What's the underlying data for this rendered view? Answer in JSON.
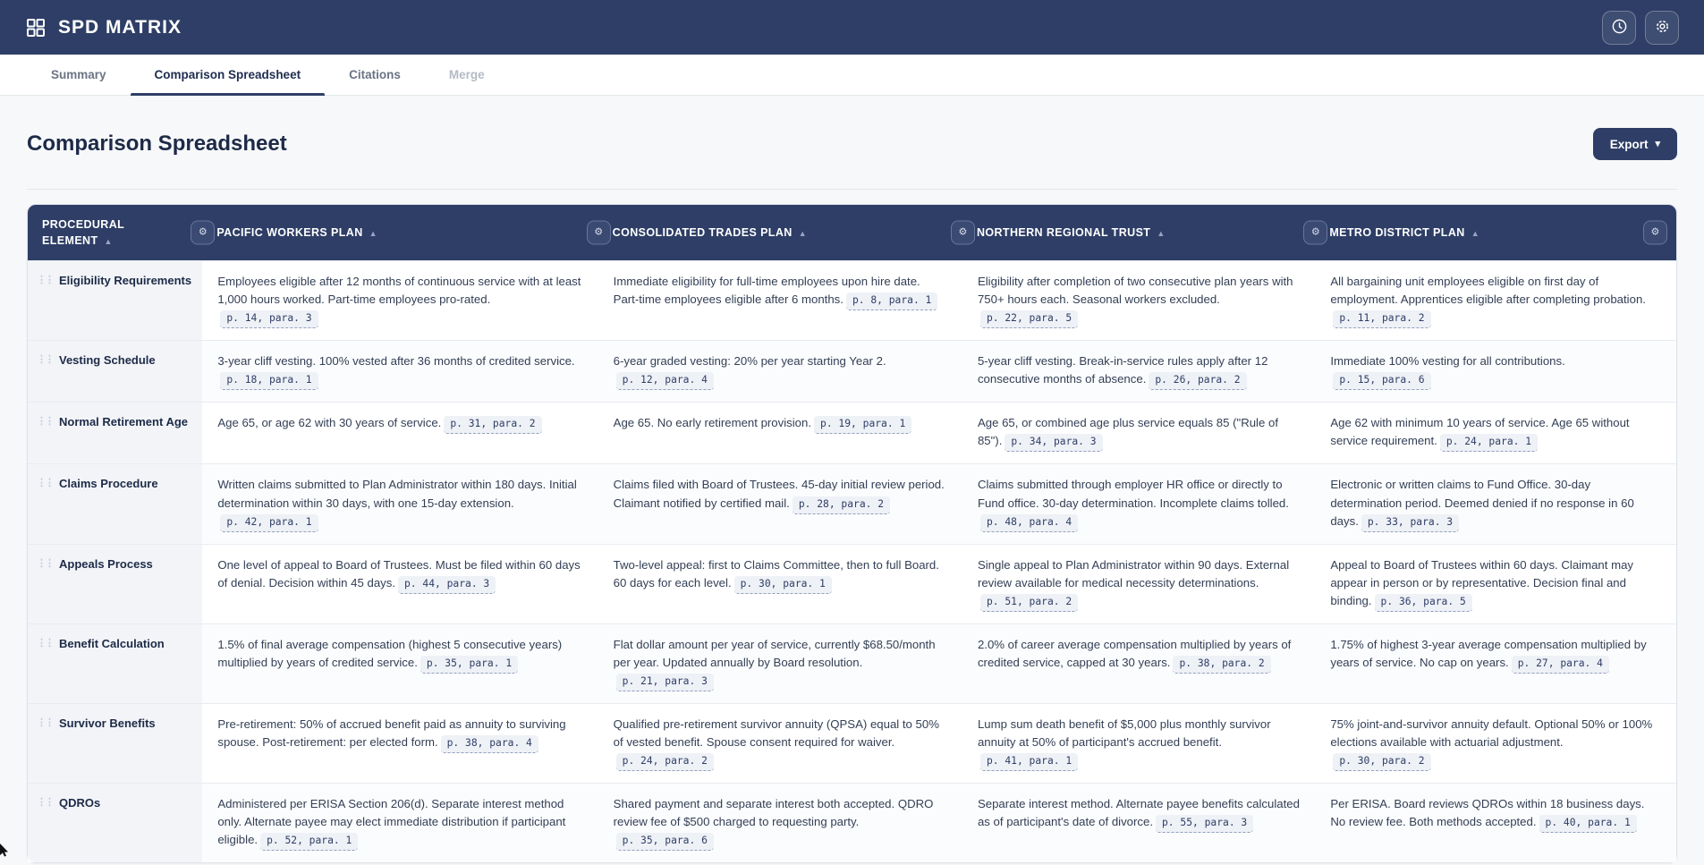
{
  "app": {
    "title": "SPD MATRIX"
  },
  "colors": {
    "brand_navy": "#2e3e66",
    "page_bg": "#f7f8fa",
    "chip_bg": "#eef1f6",
    "element_column_bg": "#f2f4f8"
  },
  "icons": {
    "logo": "grid-icon",
    "history": "clock-icon",
    "settings": "gear-icon",
    "sort_asc": "▲",
    "caret_down": "▾",
    "drag_handle": "⋮⋮",
    "column_settings": "⚙"
  },
  "tabs": [
    {
      "label": "Summary",
      "state": "inactive"
    },
    {
      "label": "Comparison Spreadsheet",
      "state": "active"
    },
    {
      "label": "Citations",
      "state": "inactive"
    },
    {
      "label": "Merge",
      "state": "disabled"
    }
  ],
  "page": {
    "title": "Comparison Spreadsheet",
    "export_label": "Export"
  },
  "table": {
    "columns": [
      {
        "label": "PROCEDURAL ELEMENT"
      },
      {
        "label": "PACIFIC WORKERS PLAN"
      },
      {
        "label": "CONSOLIDATED TRADES PLAN"
      },
      {
        "label": "NORTHERN REGIONAL TRUST"
      },
      {
        "label": "METRO DISTRICT PLAN"
      }
    ],
    "rows": [
      {
        "element": "Eligibility Requirements",
        "cells": [
          {
            "text": "Employees eligible after 12 months of continuous service with at least 1,000 hours worked. Part-time employees pro-rated.",
            "citation": "p. 14, para. 3"
          },
          {
            "text": "Immediate eligibility for full-time employees upon hire date. Part-time employees eligible after 6 months.",
            "citation": "p. 8, para. 1"
          },
          {
            "text": "Eligibility after completion of two consecutive plan years with 750+ hours each. Seasonal workers excluded.",
            "citation": "p. 22, para. 5"
          },
          {
            "text": "All bargaining unit employees eligible on first day of employment. Apprentices eligible after completing probation.",
            "citation": "p. 11, para. 2"
          }
        ]
      },
      {
        "element": "Vesting Schedule",
        "cells": [
          {
            "text": "3-year cliff vesting. 100% vested after 36 months of credited service.",
            "citation": "p. 18, para. 1"
          },
          {
            "text": "6-year graded vesting: 20% per year starting Year 2.",
            "citation": "p. 12, para. 4"
          },
          {
            "text": "5-year cliff vesting. Break-in-service rules apply after 12 consecutive months of absence.",
            "citation": "p. 26, para. 2"
          },
          {
            "text": "Immediate 100% vesting for all contributions.",
            "citation": "p. 15, para. 6"
          }
        ]
      },
      {
        "element": "Normal Retirement Age",
        "cells": [
          {
            "text": "Age 65, or age 62 with 30 years of service.",
            "citation": "p. 31, para. 2"
          },
          {
            "text": "Age 65. No early retirement provision.",
            "citation": "p. 19, para. 1"
          },
          {
            "text": "Age 65, or combined age plus service equals 85 (\"Rule of 85\").",
            "citation": "p. 34, para. 3"
          },
          {
            "text": "Age 62 with minimum 10 years of service. Age 65 without service requirement.",
            "citation": "p. 24, para. 1"
          }
        ]
      },
      {
        "element": "Claims Procedure",
        "cells": [
          {
            "text": "Written claims submitted to Plan Administrator within 180 days. Initial determination within 30 days, with one 15-day extension.",
            "citation": "p. 42, para. 1"
          },
          {
            "text": "Claims filed with Board of Trustees. 45-day initial review period. Claimant notified by certified mail.",
            "citation": "p. 28, para. 2"
          },
          {
            "text": "Claims submitted through employer HR office or directly to Fund office. 30-day determination. Incomplete claims tolled.",
            "citation": "p. 48, para. 4"
          },
          {
            "text": "Electronic or written claims to Fund Office. 30-day determination period. Deemed denied if no response in 60 days.",
            "citation": "p. 33, para. 3"
          }
        ]
      },
      {
        "element": "Appeals Process",
        "cells": [
          {
            "text": "One level of appeal to Board of Trustees. Must be filed within 60 days of denial. Decision within 45 days.",
            "citation": "p. 44, para. 3"
          },
          {
            "text": "Two-level appeal: first to Claims Committee, then to full Board. 60 days for each level.",
            "citation": "p. 30, para. 1"
          },
          {
            "text": "Single appeal to Plan Administrator within 90 days. External review available for medical necessity determinations.",
            "citation": "p. 51, para. 2"
          },
          {
            "text": "Appeal to Board of Trustees within 60 days. Claimant may appear in person or by representative. Decision final and binding.",
            "citation": "p. 36, para. 5"
          }
        ]
      },
      {
        "element": "Benefit Calculation",
        "cells": [
          {
            "text": "1.5% of final average compensation (highest 5 consecutive years) multiplied by years of credited service.",
            "citation": "p. 35, para. 1"
          },
          {
            "text": "Flat dollar amount per year of service, currently $68.50/month per year. Updated annually by Board resolution.",
            "citation": "p. 21, para. 3"
          },
          {
            "text": "2.0% of career average compensation multiplied by years of credited service, capped at 30 years.",
            "citation": "p. 38, para. 2"
          },
          {
            "text": "1.75% of highest 3-year average compensation multiplied by years of service. No cap on years.",
            "citation": "p. 27, para. 4"
          }
        ]
      },
      {
        "element": "Survivor Benefits",
        "cells": [
          {
            "text": "Pre-retirement: 50% of accrued benefit paid as annuity to surviving spouse. Post-retirement: per elected form.",
            "citation": "p. 38, para. 4"
          },
          {
            "text": "Qualified pre-retirement survivor annuity (QPSA) equal to 50% of vested benefit. Spouse consent required for waiver.",
            "citation": "p. 24, para. 2"
          },
          {
            "text": "Lump sum death benefit of $5,000 plus monthly survivor annuity at 50% of participant's accrued benefit.",
            "citation": "p. 41, para. 1"
          },
          {
            "text": "75% joint-and-survivor annuity default. Optional 50% or 100% elections available with actuarial adjustment.",
            "citation": "p. 30, para. 2"
          }
        ]
      },
      {
        "element": "QDROs",
        "cells": [
          {
            "text": "Administered per ERISA Section 206(d). Separate interest method only. Alternate payee may elect immediate distribution if participant eligible.",
            "citation": "p. 52, para. 1"
          },
          {
            "text": "Shared payment and separate interest both accepted. QDRO review fee of $500 charged to requesting party.",
            "citation": "p. 35, para. 6"
          },
          {
            "text": "Separate interest method. Alternate payee benefits calculated as of participant's date of divorce.",
            "citation": "p. 55, para. 3"
          },
          {
            "text": "Per ERISA. Board reviews QDROs within 18 business days. No review fee. Both methods accepted.",
            "citation": "p. 40, para. 1"
          }
        ]
      }
    ]
  }
}
